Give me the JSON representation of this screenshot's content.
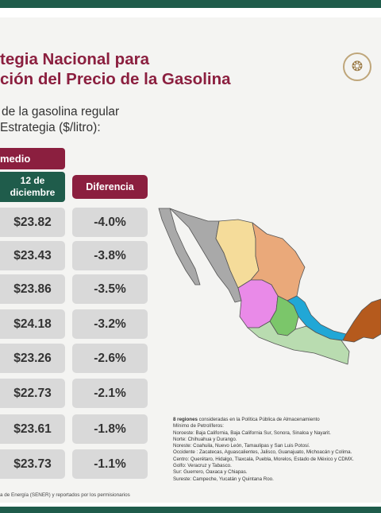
{
  "header": {
    "title_line1": "tegia Nacional para",
    "title_line2": "ción del Precio de la Gasolina",
    "subtitle_line1": "de la gasolina regular",
    "subtitle_line2": "Estrategia ($/litro):",
    "seal_icon": "mexico-coat-of-arms-icon"
  },
  "table": {
    "group_header": "medio",
    "date_header_line1": "12 de",
    "date_header_line2": "diciembre",
    "diff_header": "Diferencia",
    "rows": [
      {
        "price": "$23.82",
        "diff": "-4.0%"
      },
      {
        "price": "$23.43",
        "diff": "-3.8%"
      },
      {
        "price": "$23.86",
        "diff": "-3.5%"
      },
      {
        "price": "$24.18",
        "diff": "-3.2%"
      },
      {
        "price": "$23.26",
        "diff": "-2.6%"
      },
      {
        "price": "$22.73",
        "diff": "-2.1%"
      },
      {
        "price": "$23.61",
        "diff": "-1.8%"
      },
      {
        "price": "$23.73",
        "diff": "-1.1%"
      }
    ]
  },
  "map": {
    "regions": [
      {
        "name": "Noroeste",
        "color": "#a9a9a9"
      },
      {
        "name": "Norte",
        "color": "#f5dc9a"
      },
      {
        "name": "Noreste",
        "color": "#eaa97a"
      },
      {
        "name": "Occidente",
        "color": "#e98ae8"
      },
      {
        "name": "Centro",
        "color": "#7bc66a"
      },
      {
        "name": "Golfo",
        "color": "#21a7d6"
      },
      {
        "name": "Sur",
        "color": "#b9dcb0"
      },
      {
        "name": "Sureste",
        "color": "#b55a1d"
      }
    ]
  },
  "notes": {
    "lead_bold": "8 regiones",
    "lead_rest": " consideradas en la Política Pública de Almacenamiento",
    "lines": [
      "Mínimo de Petrolíferos:",
      "Noroeste: Baja California, Baja California Sur, Sonora, Sinaloa y Nayarit.",
      "Norte: Chihuahua y Durango.",
      "Noreste: Coahuila, Nuevo León, Tamaulipas y San Luis Potosí.",
      "Occidente : Zacatecas, Aguascalientes, Jalisco, Guanajuato, Michoacán y Colima.",
      "Centro: Querétaro, Hidalgo, Tlaxcala, Puebla, Morelos, Estado de México y CDMX.",
      "Golfo: Veracruz y Tabasco.",
      "Sur: Guerrero, Oaxaca y Chiapas.",
      "Sureste: Campeche, Yucatán y Quintana Roo."
    ]
  },
  "source": "a de Energía (SENER) y reportados por los permisionarios"
}
